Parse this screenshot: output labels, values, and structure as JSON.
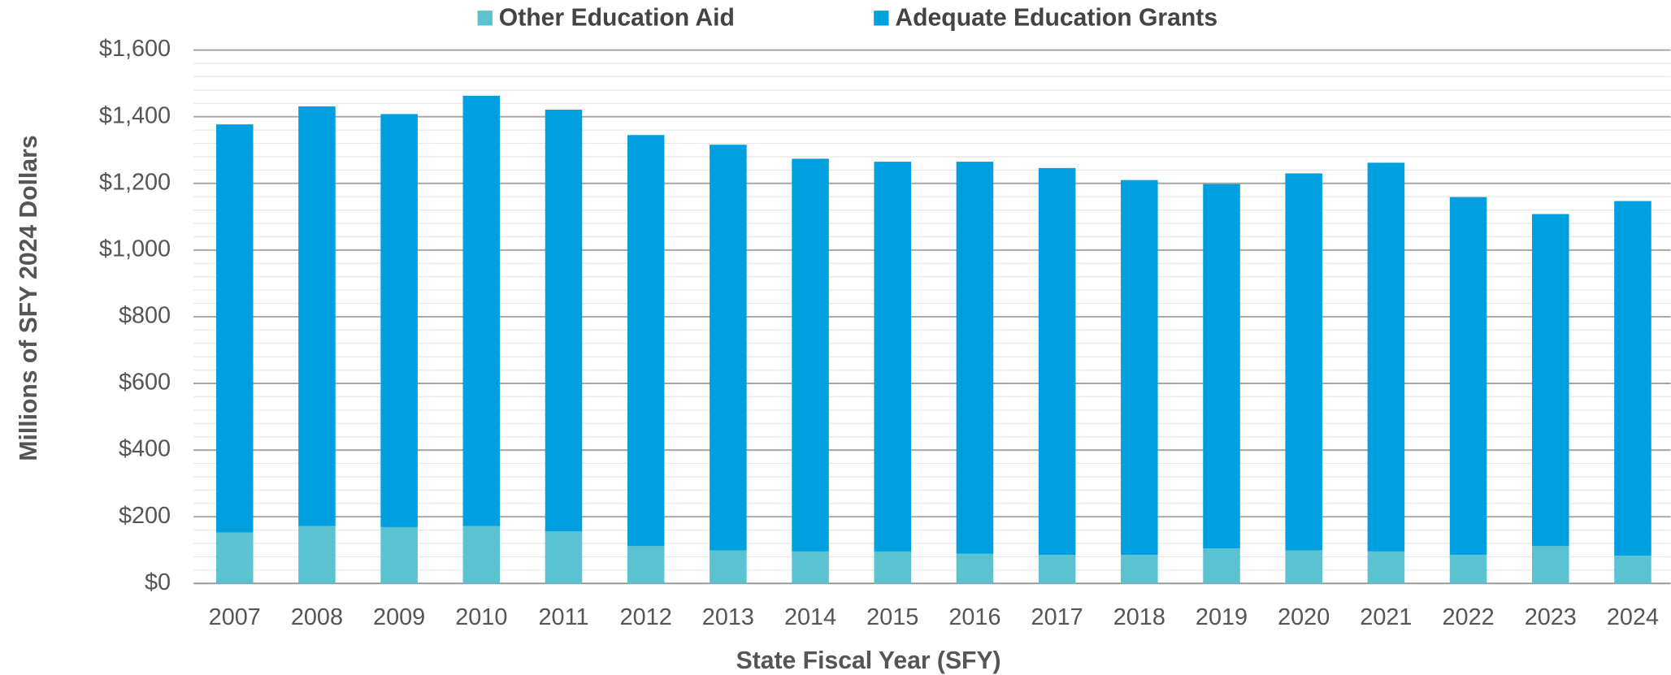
{
  "chart_data": {
    "type": "stacked_bar",
    "xlabel": "State Fiscal Year (SFY)",
    "ylabel": "Millions of SFY 2024 Dollars",
    "categories": [
      "2007",
      "2008",
      "2009",
      "2010",
      "2011",
      "2012",
      "2013",
      "2014",
      "2015",
      "2016",
      "2017",
      "2018",
      "2019",
      "2020",
      "2021",
      "2022",
      "2023",
      "2024"
    ],
    "series": [
      {
        "name": "Other Education Aid",
        "color": "#5bc2d1",
        "values": [
          153,
          172,
          169,
          172,
          156,
          112,
          99,
          96,
          96,
          89,
          86,
          86,
          105,
          99,
          96,
          86,
          112,
          83
        ]
      },
      {
        "name": "Adequate Education Grants",
        "color": "#009fdf",
        "values": [
          1224,
          1259,
          1239,
          1291,
          1265,
          1233,
          1217,
          1178,
          1169,
          1176,
          1160,
          1124,
          1093,
          1131,
          1166,
          1073,
          996,
          1064
        ]
      }
    ],
    "ylim": [
      0,
      1600
    ],
    "yticks": [
      {
        "value": 0,
        "label": "$0"
      },
      {
        "value": 200,
        "label": "$200"
      },
      {
        "value": 400,
        "label": "$400"
      },
      {
        "value": 600,
        "label": "$600"
      },
      {
        "value": 800,
        "label": "$800"
      },
      {
        "value": 1000,
        "label": "$1,000"
      },
      {
        "value": 1200,
        "label": "$1,200"
      },
      {
        "value": 1400,
        "label": "$1,400"
      },
      {
        "value": 1600,
        "label": "$1,600"
      }
    ],
    "grid": true,
    "legend": "top"
  }
}
